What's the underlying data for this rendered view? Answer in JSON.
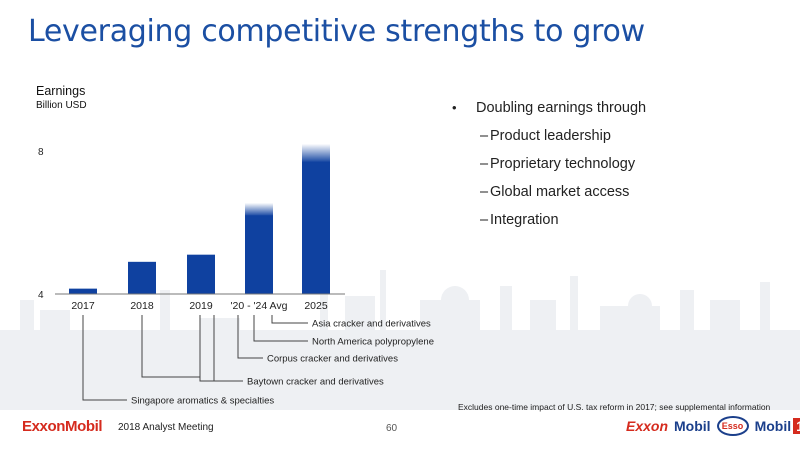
{
  "slide": {
    "title": "Leveraging competitive strengths to grow",
    "footnote": "Excludes one-time impact of U.S. tax reform in 2017; see supplemental information",
    "logo": "ExxonMobil",
    "meeting": "2018 Analyst Meeting",
    "page": "60",
    "brands": {
      "exxon": "Exxon",
      "mobil": "Mobil",
      "esso": "Esso",
      "mobil1": "Mobil",
      "mobil1_num": "1"
    }
  },
  "bullets": {
    "main": "Doubling earnings through",
    "subs": [
      "Product leadership",
      "Proprietary technology",
      "Global market access",
      "Integration"
    ]
  },
  "chart_data": {
    "type": "bar",
    "ylabel": "Earnings",
    "yunit": "Billion USD",
    "ylim": [
      4,
      8
    ],
    "yticks": [
      4,
      8
    ],
    "categories": [
      "2017",
      "2018",
      "2019",
      "'20 - '24 Avg",
      "2025"
    ],
    "values": [
      4.15,
      4.9,
      5.1,
      6.2,
      7.7
    ],
    "range_top": [
      null,
      null,
      null,
      6.55,
      8.2
    ],
    "series": [
      {
        "values": [
          4.15,
          4.9,
          5.1,
          6.2,
          7.7
        ],
        "color": "#0f41a0"
      }
    ],
    "annotations": [
      {
        "text": "Asia cracker and derivatives",
        "bar": 3
      },
      {
        "text": "North America polypropylene",
        "bar": 3
      },
      {
        "text": "Corpus cracker and derivatives",
        "bar": 3
      },
      {
        "text": "Baytown cracker and derivatives",
        "bar": 2
      },
      {
        "text": "Singapore aromatics & specialties",
        "bar": 0
      }
    ]
  }
}
